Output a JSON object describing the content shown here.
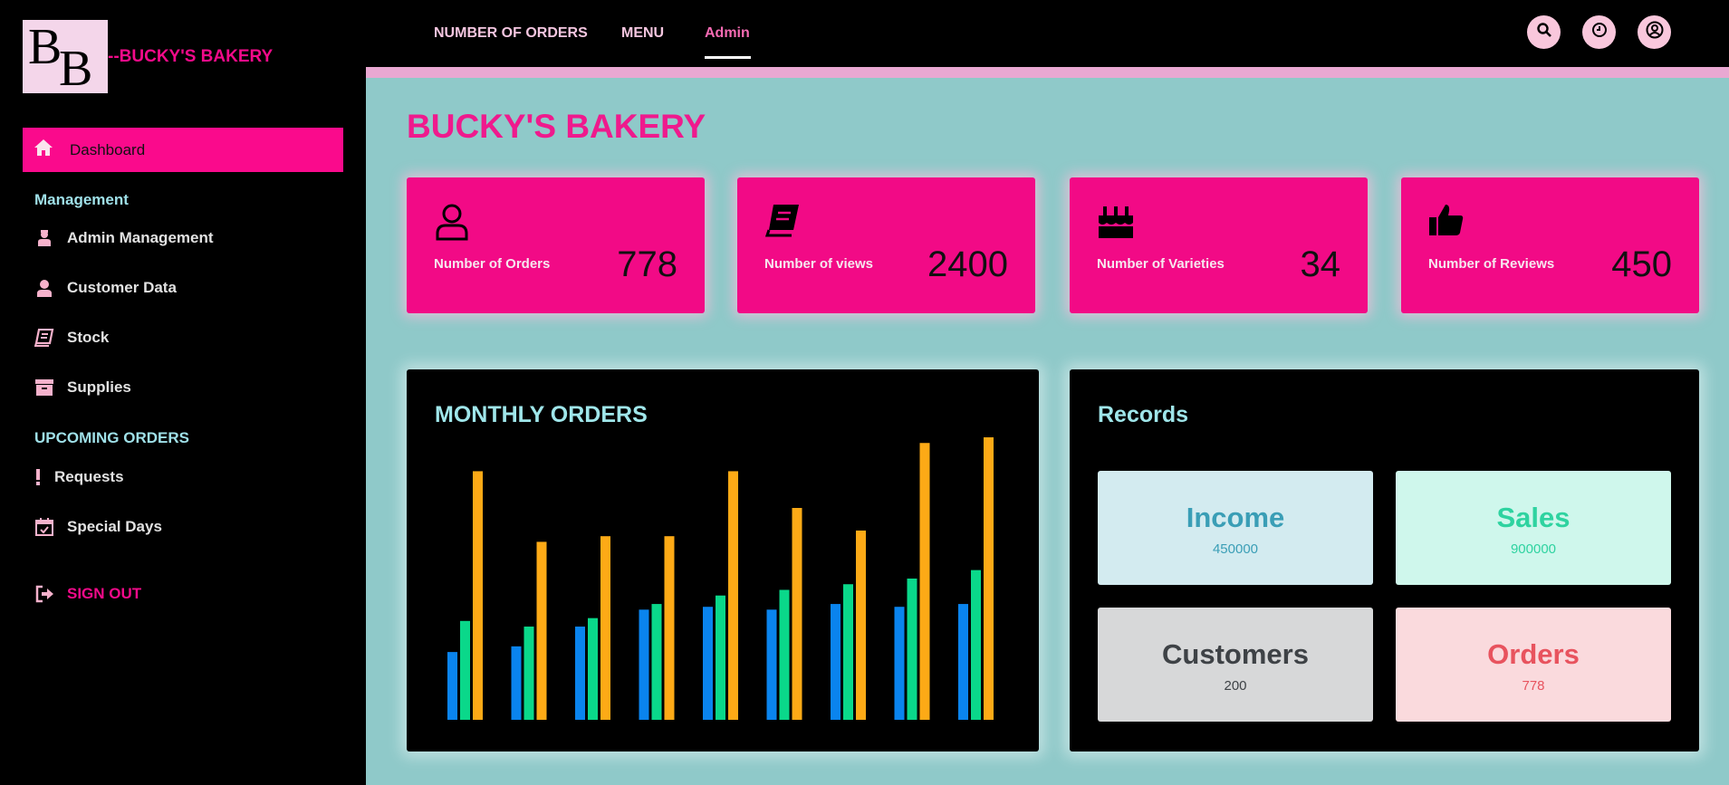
{
  "brand": {
    "logo_text": "BB",
    "name": "--BUCKY'S BAKERY"
  },
  "sidebar": {
    "active": {
      "label": "Dashboard",
      "icon": "home-icon"
    },
    "section_management": "Management",
    "management_items": [
      {
        "label": "Admin Management",
        "icon": "admin-icon"
      },
      {
        "label": "Customer Data",
        "icon": "user-icon"
      },
      {
        "label": "Stock",
        "icon": "book-icon"
      },
      {
        "label": "Supplies",
        "icon": "archive-box-icon"
      }
    ],
    "section_upcoming": "UPCOMING ORDERS",
    "upcoming_items": [
      {
        "label": "Requests",
        "icon": "exclamation-icon"
      },
      {
        "label": "Special Days",
        "icon": "calendar-check-icon"
      }
    ],
    "signout": {
      "label": "SIGN OUT",
      "icon": "sign-out-icon"
    }
  },
  "topnav": {
    "items": [
      "NUMBER OF ORDERS",
      "MENU",
      "Admin"
    ],
    "active": "Admin",
    "buttons": [
      "search-icon",
      "clock-icon",
      "user-circle-icon"
    ]
  },
  "page": {
    "title": "BUCKY'S BAKERY"
  },
  "stats": [
    {
      "label": "Number of Orders",
      "value": "778",
      "icon": "user-outline-icon"
    },
    {
      "label": "Number of views",
      "value": "2400",
      "icon": "book-icon"
    },
    {
      "label": "Number of Varieties",
      "value": "34",
      "icon": "birthday-cake-icon"
    },
    {
      "label": "Number of Reviews",
      "value": "450",
      "icon": "thumbs-up-icon"
    }
  ],
  "monthly_orders": {
    "title": "MONTHLY ORDERS"
  },
  "chart_data": {
    "type": "bar",
    "title": "MONTHLY ORDERS",
    "categories": [
      "",
      "",
      "",
      "",
      "",
      "",
      "",
      "",
      ""
    ],
    "ylim": [
      0,
      100
    ],
    "grid": false,
    "series": [
      {
        "values": [
          24,
          26,
          33,
          39,
          40,
          39,
          41,
          40,
          41
        ]
      },
      {
        "values": [
          35,
          33,
          36,
          41,
          44,
          46,
          48,
          50,
          53
        ]
      },
      {
        "values": [
          88,
          63,
          65,
          65,
          88,
          75,
          67,
          98,
          100
        ]
      }
    ],
    "colors": [
      "#0a84ee",
      "#0ad88a",
      "#fdaa16"
    ]
  },
  "records": {
    "title": "Records",
    "items": [
      {
        "title": "Income",
        "value": "450000",
        "bg": "#d3ebf0",
        "fg": "#3a9eb6"
      },
      {
        "title": "Sales",
        "value": "900000",
        "bg": "#cff7ec",
        "fg": "#2ed3a0"
      },
      {
        "title": "Customers",
        "value": "200",
        "bg": "#d7d8d9",
        "fg": "#3e4246"
      },
      {
        "title": "Orders",
        "value": "778",
        "bg": "#fadadd",
        "fg": "#e8535e"
      }
    ]
  },
  "colors": {
    "accent": "#f20a8a",
    "teal_bg": "#8fc9c9",
    "bar_pink": "#e9a8d2"
  }
}
